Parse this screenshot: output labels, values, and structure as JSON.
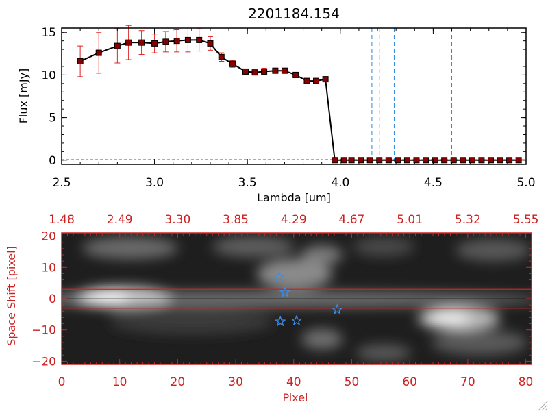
{
  "colors": {
    "axis_black": "#000000",
    "axis_red": "#cc2222",
    "errbar": "#dd2222",
    "marker": "#880000",
    "vline": "#2a8ae0",
    "star": "#3b8ee8"
  },
  "chart_data": [
    {
      "type": "line",
      "title": "2201184.154",
      "xlabel": "Lambda [um]",
      "ylabel": "Flux [mJy]",
      "xlim": [
        2.5,
        5.0
      ],
      "ylim": [
        -0.5,
        15.5
      ],
      "xticks": [
        "2.5",
        "3.0",
        "3.5",
        "4.0",
        "4.5",
        "5.0"
      ],
      "yticks": [
        "0",
        "5",
        "10",
        "15"
      ],
      "x": [
        2.6,
        2.7,
        2.8,
        2.86,
        2.93,
        3.0,
        3.06,
        3.12,
        3.18,
        3.24,
        3.3,
        3.36,
        3.42,
        3.49,
        3.54,
        3.59,
        3.65,
        3.7,
        3.76,
        3.82,
        3.87,
        3.92,
        3.97,
        4.02,
        4.06,
        4.11,
        4.16,
        4.21,
        4.26,
        4.31,
        4.36,
        4.41,
        4.46,
        4.51,
        4.56,
        4.61,
        4.66,
        4.71,
        4.76,
        4.81,
        4.86,
        4.91,
        4.96
      ],
      "y": [
        11.6,
        12.6,
        13.4,
        13.8,
        13.8,
        13.7,
        13.9,
        14.0,
        14.1,
        14.1,
        13.7,
        12.1,
        11.3,
        10.4,
        10.3,
        10.4,
        10.5,
        10.5,
        10.0,
        9.3,
        9.3,
        9.5,
        0,
        0,
        0,
        0,
        0,
        0,
        0,
        0,
        0,
        0,
        0,
        0,
        0,
        0,
        0,
        0,
        0,
        0,
        0,
        0,
        0
      ],
      "yerr": [
        1.8,
        2.4,
        2.0,
        2.0,
        1.4,
        1.1,
        1.2,
        1.3,
        1.4,
        1.3,
        0.8,
        0.5,
        0.4,
        0.3,
        0.3,
        0.4,
        0.3,
        0.3,
        0.3,
        0.3,
        0.3,
        0.3,
        0,
        0,
        0,
        0,
        0,
        0,
        0,
        0,
        0,
        0,
        0,
        0,
        0,
        0,
        0,
        0,
        0,
        0,
        0,
        0,
        0
      ],
      "vlines": [
        4.17,
        4.21,
        4.29,
        4.6
      ],
      "grid": false
    },
    {
      "type": "heatmap",
      "xlabel": "Pixel",
      "ylabel": "Space Shift [pixel]",
      "xlim": [
        0,
        81
      ],
      "ylim": [
        -21,
        21
      ],
      "xticks": [
        "0",
        "10",
        "20",
        "30",
        "40",
        "50",
        "60",
        "70",
        "80"
      ],
      "yticks": [
        "−20",
        "−10",
        "0",
        "10",
        "20"
      ],
      "top_axis_ticks": [
        "1.48",
        "2.49",
        "3.30",
        "3.85",
        "4.29",
        "4.67",
        "5.01",
        "5.32",
        "5.55"
      ],
      "hlines": [
        3,
        -3
      ],
      "stars": [
        [
          37.5,
          7
        ],
        [
          38.5,
          2
        ],
        [
          37.7,
          -7.3
        ],
        [
          40.5,
          -7
        ],
        [
          47.5,
          -3.5
        ]
      ]
    }
  ]
}
